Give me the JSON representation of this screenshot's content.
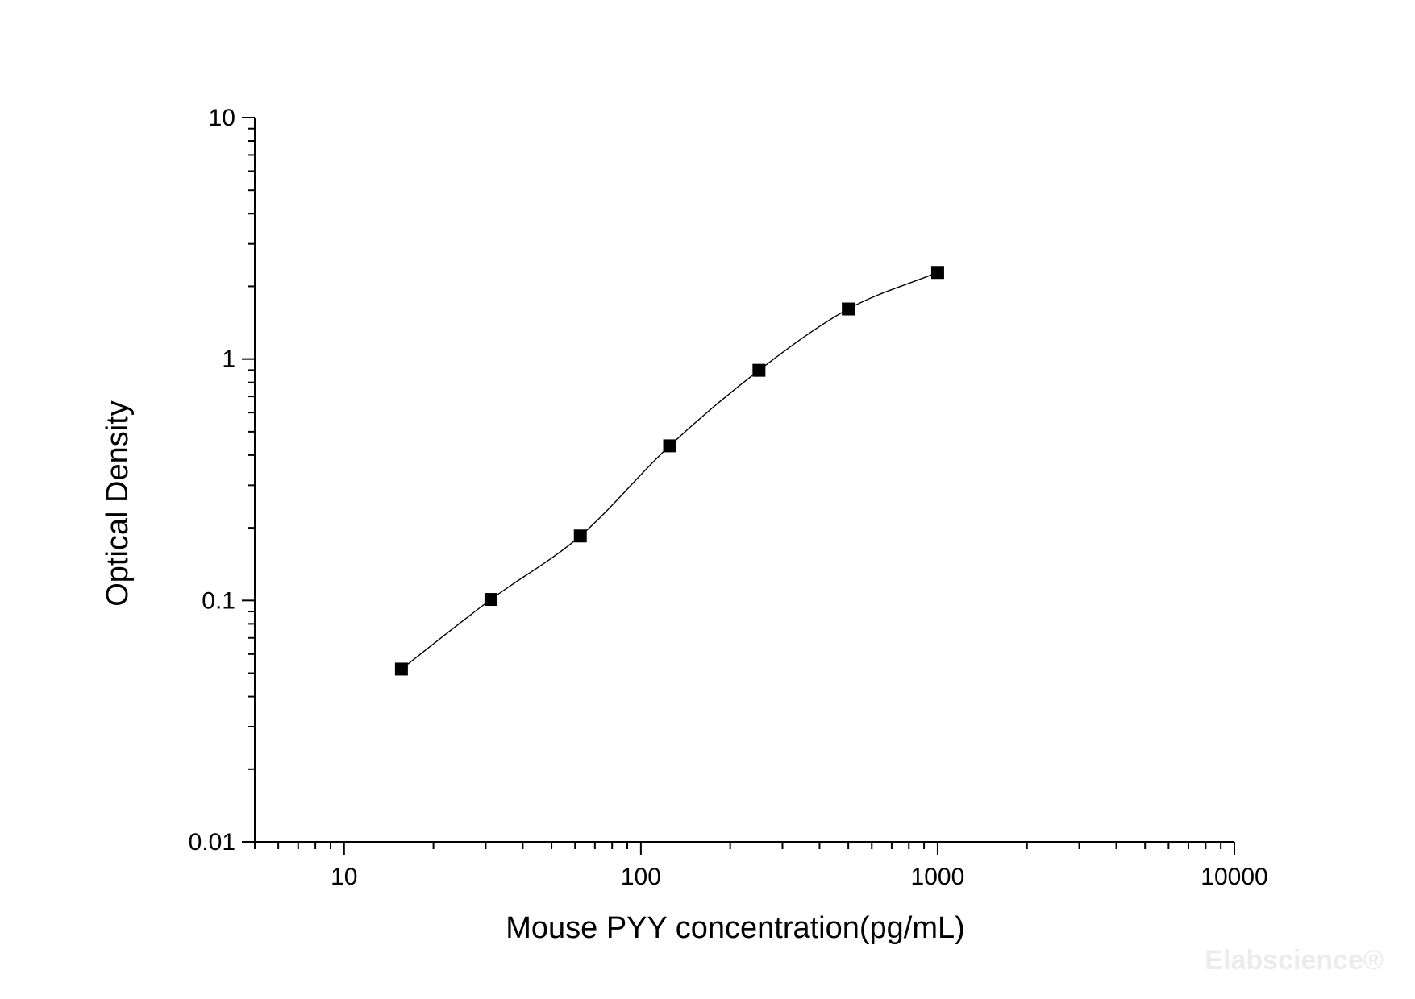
{
  "chart_data": {
    "type": "scatter",
    "title": "",
    "xlabel": "Mouse PYY concentration(pg/mL)",
    "ylabel": "Optical Density",
    "x_scale": "log",
    "y_scale": "log",
    "xlim": [
      5,
      10000
    ],
    "ylim": [
      0.01,
      10
    ],
    "x_ticks": [
      {
        "value": 10,
        "label": "10"
      },
      {
        "value": 100,
        "label": "100"
      },
      {
        "value": 1000,
        "label": "1000"
      },
      {
        "value": 10000,
        "label": "10000"
      }
    ],
    "y_ticks": [
      {
        "value": 0.01,
        "label": "0.01"
      },
      {
        "value": 0.1,
        "label": "0.1"
      },
      {
        "value": 1,
        "label": "1"
      },
      {
        "value": 10,
        "label": "10"
      }
    ],
    "grid": false,
    "legend": "none",
    "marker": "square",
    "series": [
      {
        "x": [
          15.6,
          31.25,
          62.5,
          125,
          250,
          500,
          1000
        ],
        "y": [
          0.052,
          0.101,
          0.185,
          0.437,
          0.898,
          1.612,
          2.283
        ],
        "fit_curve": true
      }
    ],
    "colors": {
      "marker": "#000000",
      "line": "#000000",
      "axis": "#000000"
    }
  },
  "watermark": "Elabscience®"
}
